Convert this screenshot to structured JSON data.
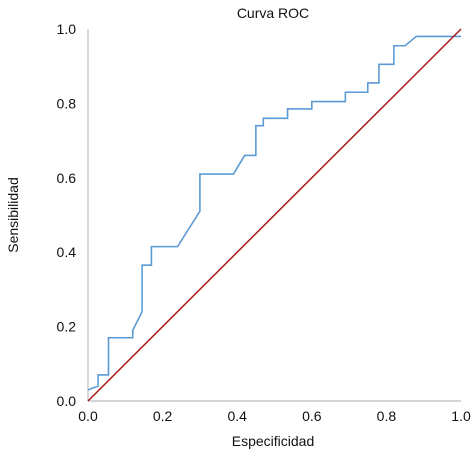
{
  "chart_data": {
    "type": "line",
    "title": "Curva ROC",
    "xlabel": "Especificidad",
    "ylabel": "Sensibilidad",
    "xlim": [
      0.0,
      1.0
    ],
    "ylim": [
      0.0,
      1.0
    ],
    "xticks": [
      "0.0",
      "0.2",
      "0.4",
      "0.6",
      "0.8",
      "1.0"
    ],
    "yticks": [
      "0.0",
      "0.2",
      "0.4",
      "0.6",
      "0.8",
      "1.0"
    ],
    "grid": false,
    "legend": "none",
    "series": [
      {
        "color": "#5b9bd5",
        "x": [
          0.0,
          0.027,
          0.027,
          0.055,
          0.055,
          0.12,
          0.12,
          0.145,
          0.145,
          0.17,
          0.17,
          0.24,
          0.3,
          0.3,
          0.39,
          0.42,
          0.42,
          0.45,
          0.45,
          0.47,
          0.47,
          0.535,
          0.535,
          0.6,
          0.6,
          0.69,
          0.69,
          0.75,
          0.75,
          0.78,
          0.78,
          0.82,
          0.82,
          0.85,
          0.88,
          0.935,
          0.935,
          0.97,
          0.97,
          1.0
        ],
        "y": [
          0.03,
          0.04,
          0.07,
          0.07,
          0.17,
          0.17,
          0.19,
          0.24,
          0.365,
          0.365,
          0.415,
          0.415,
          0.51,
          0.61,
          0.61,
          0.66,
          0.66,
          0.66,
          0.74,
          0.74,
          0.76,
          0.76,
          0.785,
          0.785,
          0.805,
          0.805,
          0.83,
          0.83,
          0.855,
          0.855,
          0.905,
          0.905,
          0.955,
          0.955,
          0.98,
          0.98,
          0.98,
          0.98,
          0.98,
          0.98
        ]
      },
      {
        "color": "#a91a1a",
        "x": [
          0.0,
          1.0
        ],
        "y": [
          0.0,
          1.0
        ]
      }
    ]
  }
}
